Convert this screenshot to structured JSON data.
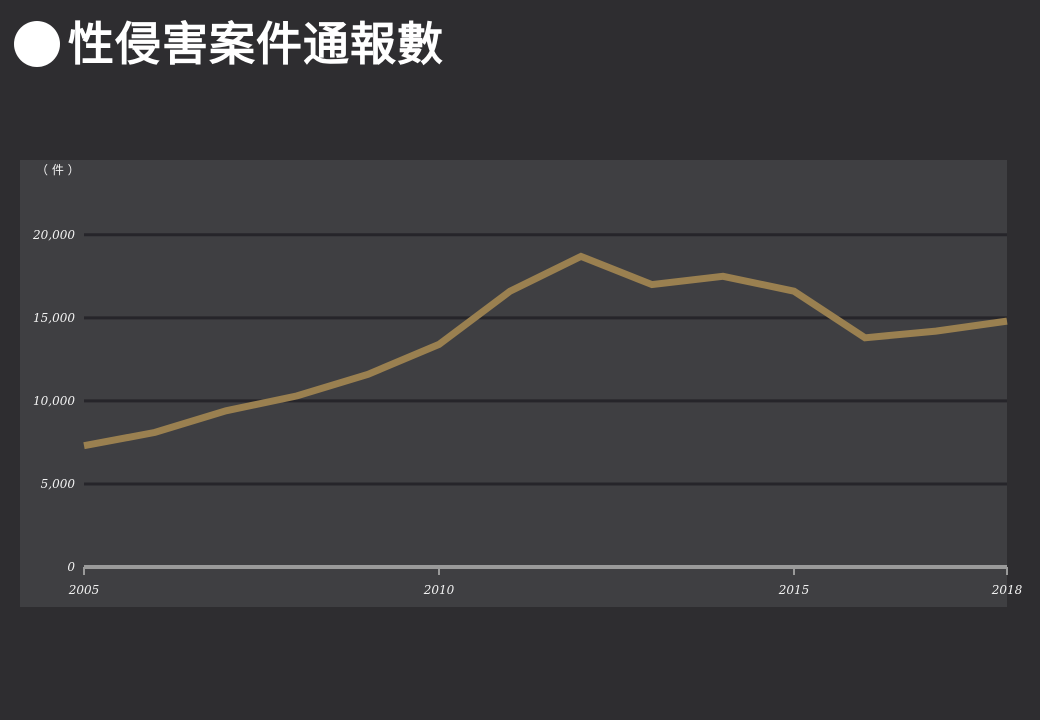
{
  "header": {
    "title": "性侵害案件通報數"
  },
  "colors": {
    "background": "#2e2d30",
    "plot_area": "#3f3f42",
    "grid": "#26252a",
    "axis": "#9a9a9a",
    "line": "#9a8050",
    "text": "#f2f2f2"
  },
  "chart_data": {
    "type": "line",
    "title": "性侵害案件通報數",
    "ylabel": "（ 件 ）",
    "xlabel": "",
    "x": [
      2005,
      2006,
      2007,
      2008,
      2009,
      2010,
      2011,
      2012,
      2013,
      2014,
      2015,
      2016,
      2017,
      2018
    ],
    "series": [
      {
        "name": "",
        "values": [
          7300,
          8100,
          9400,
          10300,
          11600,
          13400,
          16600,
          18700,
          17000,
          17500,
          16600,
          13800,
          14200,
          14800
        ]
      }
    ],
    "xlim": [
      2005,
      2018
    ],
    "ylim": [
      0,
      24500
    ],
    "x_ticks": [
      2005,
      2010,
      2015,
      2018
    ],
    "x_tick_labels": [
      "2005",
      "2010",
      "2015",
      "2018"
    ],
    "y_ticks": [
      0,
      5000,
      10000,
      15000,
      20000
    ],
    "y_tick_labels": [
      "0",
      "5,000",
      "10,000",
      "15,000",
      "20,000"
    ],
    "grid": true,
    "legend": "none"
  }
}
